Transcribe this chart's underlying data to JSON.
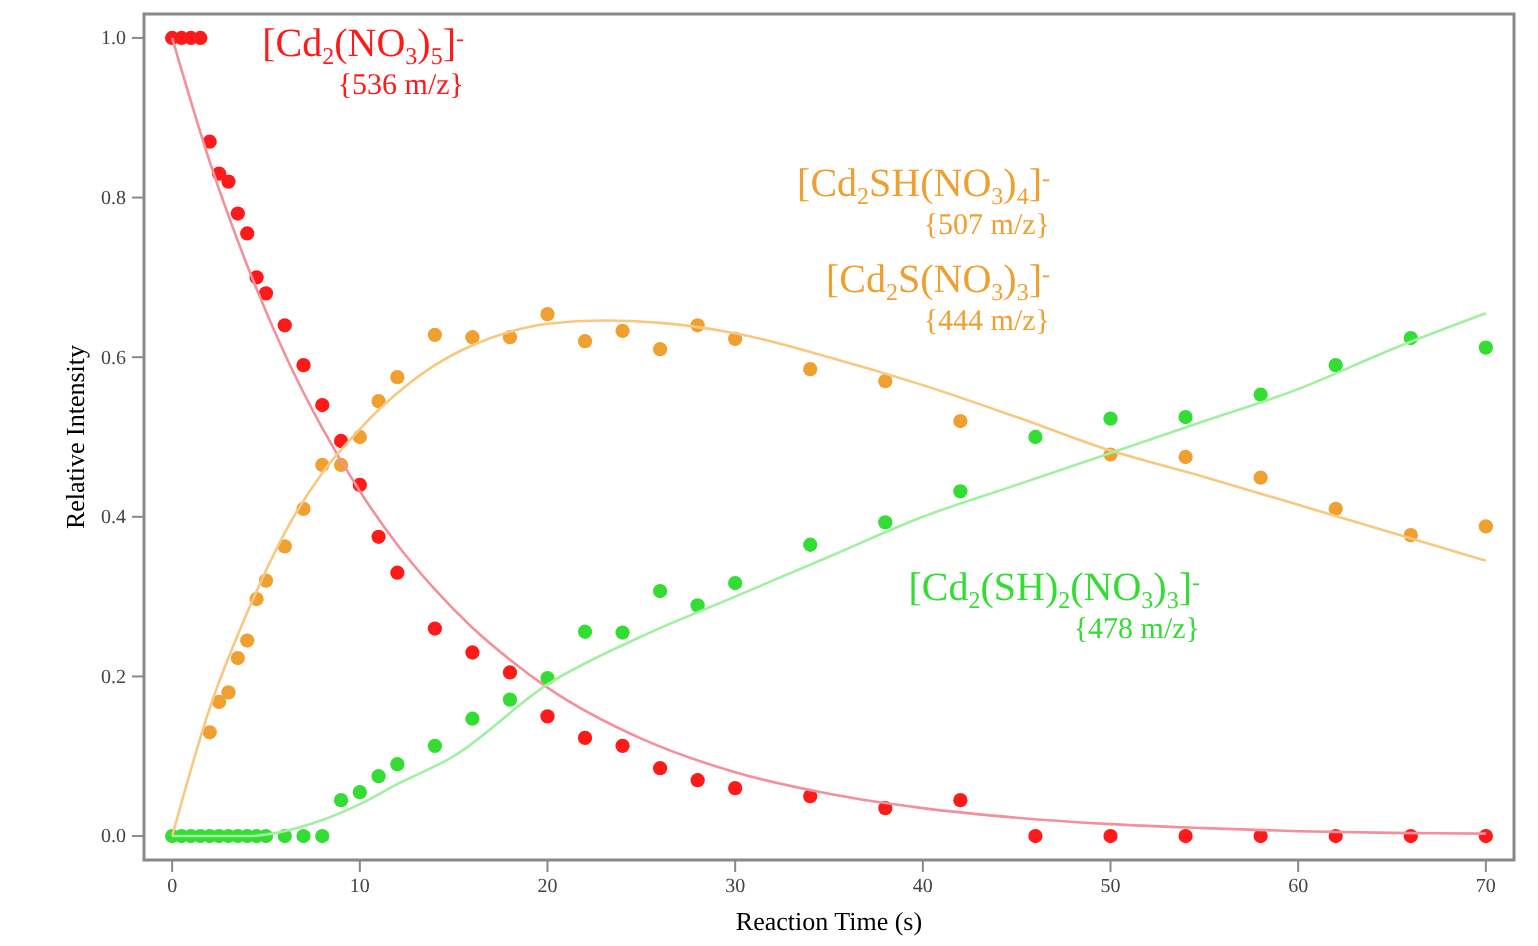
{
  "chart_data": {
    "type": "scatter",
    "xlabel": "Reaction Time (s)",
    "ylabel": "Relative Intensity",
    "xlim": [
      -1.5,
      71.5
    ],
    "ylim": [
      -0.03,
      1.03
    ],
    "xticks": [
      0,
      10,
      20,
      30,
      40,
      50,
      60,
      70
    ],
    "yticks": [
      {
        "value": 0,
        "label": "0.0"
      },
      {
        "value": 0.2,
        "label": "0.2"
      },
      {
        "value": 0.4,
        "label": "0.4"
      },
      {
        "value": 0.6,
        "label": "0.6"
      },
      {
        "value": 0.8,
        "label": "0.8"
      },
      {
        "value": 1,
        "label": "1.0"
      }
    ],
    "grid": false,
    "legend": false,
    "marker": "circle",
    "series": [
      {
        "name": "[Cd$_{2}$(NO$_{3}$)$_{5}$]$^{-}$\n{536 m/z}",
        "color": "#ff1a1a",
        "x": [
          0,
          0.5,
          1,
          1.5,
          2,
          2.5,
          3,
          3.5,
          4,
          4.5,
          5,
          6,
          7,
          8,
          9,
          10,
          11,
          12,
          14,
          16,
          18,
          20,
          22,
          24,
          26,
          28,
          30,
          34,
          38,
          42,
          46,
          50,
          54,
          58,
          62,
          66,
          70
        ],
        "values": [
          1,
          1,
          1,
          1,
          0.87,
          0.83,
          0.82,
          0.78,
          0.755,
          0.7,
          0.68,
          0.64,
          0.59,
          0.54,
          0.495,
          0.44,
          0.375,
          0.33,
          0.26,
          0.23,
          0.205,
          0.15,
          0.123,
          0.113,
          0.085,
          0.07,
          0.06,
          0.05,
          0.035,
          0.045,
          0,
          0,
          0,
          0,
          0,
          0,
          0
        ]
      },
      {
        "name": "[Cd$_{2}$SH(NO$_{3}$)$_{4}$]$^{-}$\n{507 m/z}\n[Cd$_{2}$S(NO$_{3}$)$_{3}$]$^{-}$\n{444 m/z}",
        "color": "#f0a030",
        "x": [
          2,
          2.5,
          3,
          3.5,
          4,
          4.5,
          5,
          6,
          7,
          8,
          9,
          10,
          11,
          12,
          14,
          16,
          18,
          20,
          22,
          24,
          26,
          28,
          30,
          34,
          38,
          42,
          50,
          54,
          58,
          62,
          66,
          70
        ],
        "values": [
          0.13,
          0.168,
          0.18,
          0.223,
          0.245,
          0.297,
          0.32,
          0.363,
          0.41,
          0.465,
          0.465,
          0.5,
          0.545,
          0.575,
          0.628,
          0.625,
          0.625,
          0.654,
          0.62,
          0.633,
          0.61,
          0.64,
          0.623,
          0.585,
          0.57,
          0.52,
          0.478,
          0.475,
          0.449,
          0.41,
          0.377,
          0.388
        ]
      },
      {
        "name": "[Cd$_{2}$(SH)$_{2}$(NO$_{3}$)$_{3}$]$^{-}$\n{478 m/z}",
        "color": "#33dd33",
        "x": [
          0,
          0.5,
          1,
          1.5,
          2,
          2.5,
          3,
          3.5,
          4,
          4.5,
          5,
          6,
          7,
          8,
          9,
          10,
          11,
          12,
          14,
          16,
          18,
          20,
          22,
          24,
          26,
          28,
          30,
          34,
          38,
          42,
          46,
          50,
          54,
          58,
          62,
          66,
          70
        ],
        "values": [
          0,
          0,
          0,
          0,
          0,
          0,
          0,
          0,
          0,
          0,
          0,
          0,
          0,
          0,
          0.045,
          0.055,
          0.075,
          0.09,
          0.113,
          0.147,
          0.171,
          0.198,
          0.256,
          0.255,
          0.307,
          0.289,
          0.317,
          0.365,
          0.393,
          0.432,
          0.5,
          0.523,
          0.525,
          0.553,
          0.59,
          0.624,
          0.612
        ]
      },
      {
        "type": "line",
        "marker": "none",
        "color": "#f4909c",
        "x": [
          0,
          2,
          4,
          6,
          8,
          10,
          12,
          14,
          16,
          18,
          20,
          25,
          30,
          35,
          40,
          45,
          50,
          55,
          60,
          65,
          70
        ],
        "values": [
          1,
          0.845,
          0.715,
          0.604,
          0.511,
          0.432,
          0.365,
          0.309,
          0.261,
          0.221,
          0.186,
          0.122,
          0.08,
          0.053,
          0.035,
          0.023,
          0.015,
          0.01,
          0.006,
          0.004,
          0.003
        ]
      },
      {
        "type": "line",
        "marker": "none",
        "color": "#f8c880",
        "x": [
          0,
          2,
          4,
          6,
          8,
          10,
          12,
          14,
          16,
          18,
          20,
          23,
          26,
          30,
          35,
          40,
          45,
          50,
          55,
          60,
          65,
          70
        ],
        "values": [
          0,
          0.16,
          0.28,
          0.38,
          0.455,
          0.51,
          0.555,
          0.59,
          0.615,
          0.632,
          0.642,
          0.646,
          0.643,
          0.63,
          0.6,
          0.565,
          0.525,
          0.483,
          0.45,
          0.415,
          0.38,
          0.345
        ]
      },
      {
        "type": "line",
        "marker": "none",
        "color": "#a0f0a0",
        "x": [
          0,
          4,
          8,
          10,
          12,
          15,
          20,
          25,
          30,
          35,
          40,
          45,
          50,
          55,
          60,
          65,
          70
        ],
        "values": [
          0,
          0,
          0.02,
          0.04,
          0.065,
          0.1,
          0.19,
          0.25,
          0.3,
          0.35,
          0.4,
          0.44,
          0.48,
          0.52,
          0.56,
          0.61,
          0.655
        ]
      }
    ]
  }
}
